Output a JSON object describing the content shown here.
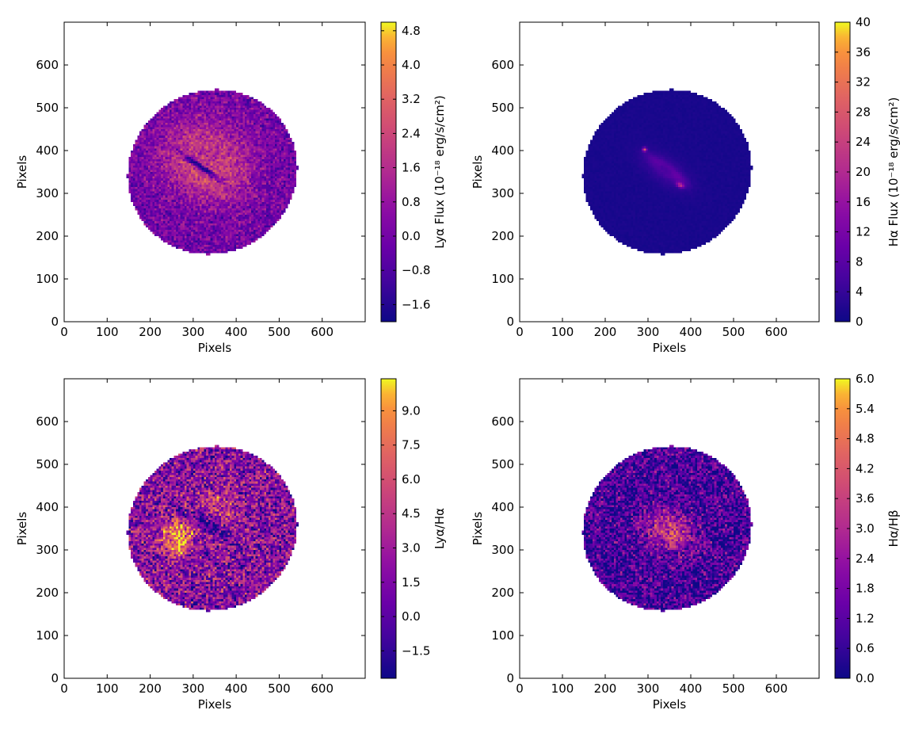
{
  "chart_data": [
    {
      "type": "heatmap",
      "panel": "top-left",
      "xlabel": "Pixels",
      "ylabel": "Pixels",
      "xlim": [
        0,
        700
      ],
      "ylim": [
        0,
        700
      ],
      "xticks": [
        "0",
        "100",
        "200",
        "300",
        "400",
        "500",
        "600"
      ],
      "yticks": [
        "0",
        "100",
        "200",
        "300",
        "400",
        "500",
        "600"
      ],
      "colormap": "plasma",
      "colorbar": {
        "label": "Lyα Flux (10⁻¹⁸ erg/s/cm²)",
        "range": [
          -2.0,
          5.0
        ],
        "ticks": [
          -1.6,
          -0.8,
          0.0,
          0.8,
          1.6,
          2.4,
          3.2,
          4.0,
          4.8
        ],
        "tick_labels": [
          "−1.6",
          "−0.8",
          "0.0",
          "0.8",
          "1.6",
          "2.4",
          "3.2",
          "4.0",
          "4.8"
        ]
      },
      "image": {
        "ellipse": {
          "cx": 345,
          "cy": 350,
          "rx": 200,
          "ry": 190,
          "angle": 30
        },
        "background_level": 0.28,
        "features": [
          {
            "kind": "glow",
            "x": 335,
            "y": 360,
            "rx": 90,
            "ry": 70,
            "angle": -30,
            "level": 0.97
          },
          {
            "kind": "glow",
            "x": 330,
            "y": 390,
            "rx": 135,
            "ry": 115,
            "angle": -20,
            "level": 0.55
          },
          {
            "kind": "hole",
            "x": 320,
            "y": 360,
            "rx": 80,
            "ry": 9,
            "angle": -35,
            "level": 0.05
          }
        ],
        "noise": 0.3
      }
    },
    {
      "type": "heatmap",
      "panel": "top-right",
      "xlabel": "Pixels",
      "ylabel": "Pixels",
      "xlim": [
        0,
        700
      ],
      "ylim": [
        0,
        700
      ],
      "xticks": [
        "0",
        "100",
        "200",
        "300",
        "400",
        "500",
        "600"
      ],
      "yticks": [
        "0",
        "100",
        "200",
        "300",
        "400",
        "500",
        "600"
      ],
      "colormap": "plasma",
      "colorbar": {
        "label": "Hα Flux (10⁻¹⁸ erg/s/cm²)",
        "range": [
          0,
          40
        ],
        "ticks": [
          0,
          4,
          8,
          12,
          16,
          20,
          24,
          28,
          32,
          36,
          40
        ],
        "tick_labels": [
          "0",
          "4",
          "8",
          "12",
          "16",
          "20",
          "24",
          "28",
          "32",
          "36",
          "40"
        ]
      },
      "image": {
        "ellipse": {
          "cx": 345,
          "cy": 350,
          "rx": 200,
          "ry": 190,
          "angle": 30
        },
        "background_level": 0.03,
        "features": [
          {
            "kind": "glow",
            "x": 345,
            "y": 355,
            "rx": 48,
            "ry": 12,
            "angle": -35,
            "level": 0.85
          },
          {
            "kind": "glow",
            "x": 375,
            "y": 320,
            "rx": 12,
            "ry": 7,
            "angle": -30,
            "level": 0.95
          },
          {
            "kind": "glow",
            "x": 292,
            "y": 402,
            "rx": 6,
            "ry": 6,
            "angle": 0,
            "level": 0.9
          },
          {
            "kind": "glow",
            "x": 340,
            "y": 355,
            "rx": 80,
            "ry": 35,
            "angle": -35,
            "level": 0.15
          }
        ],
        "noise": 0.02
      }
    },
    {
      "type": "heatmap",
      "panel": "bottom-left",
      "xlabel": "Pixels",
      "ylabel": "Pixels",
      "xlim": [
        0,
        700
      ],
      "ylim": [
        0,
        700
      ],
      "xticks": [
        "0",
        "100",
        "200",
        "300",
        "400",
        "500",
        "600"
      ],
      "yticks": [
        "0",
        "100",
        "200",
        "300",
        "400",
        "500",
        "600"
      ],
      "colormap": "plasma",
      "colorbar": {
        "label": "Lyα/Hα",
        "range": [
          -2.7,
          10.4
        ],
        "ticks": [
          -1.5,
          0.0,
          1.5,
          3.0,
          4.5,
          6.0,
          7.5,
          9.0
        ],
        "tick_labels": [
          "−1.5",
          "0.0",
          "1.5",
          "3.0",
          "4.5",
          "6.0",
          "7.5",
          "9.0"
        ]
      },
      "image": {
        "ellipse": {
          "cx": 345,
          "cy": 350,
          "rx": 200,
          "ry": 190,
          "angle": 30
        },
        "background_level": 0.35,
        "features": [
          {
            "kind": "glow",
            "x": 265,
            "y": 330,
            "rx": 45,
            "ry": 50,
            "angle": 0,
            "level": 0.95
          },
          {
            "kind": "glow",
            "x": 360,
            "y": 400,
            "rx": 60,
            "ry": 70,
            "angle": 0,
            "level": 0.6
          },
          {
            "kind": "hole",
            "x": 335,
            "y": 360,
            "rx": 70,
            "ry": 25,
            "angle": -30,
            "level": 0.12
          }
        ],
        "noise": 0.6
      }
    },
    {
      "type": "heatmap",
      "panel": "bottom-right",
      "xlabel": "Pixels",
      "ylabel": "Pixels",
      "xlim": [
        0,
        700
      ],
      "ylim": [
        0,
        700
      ],
      "xticks": [
        "0",
        "100",
        "200",
        "300",
        "400",
        "500",
        "600"
      ],
      "yticks": [
        "0",
        "100",
        "200",
        "300",
        "400",
        "500",
        "600"
      ],
      "colormap": "plasma",
      "colorbar": {
        "label": "Hα/Hβ",
        "range": [
          0,
          6
        ],
        "ticks": [
          0.0,
          0.6,
          1.2,
          1.8,
          2.4,
          3.0,
          3.6,
          4.2,
          4.8,
          5.4,
          6.0
        ],
        "tick_labels": [
          "0.0",
          "0.6",
          "1.2",
          "1.8",
          "2.4",
          "3.0",
          "3.6",
          "4.2",
          "4.8",
          "5.4",
          "6.0"
        ]
      },
      "image": {
        "ellipse": {
          "cx": 345,
          "cy": 350,
          "rx": 200,
          "ry": 190,
          "angle": 30
        },
        "background_level": 0.15,
        "features": [
          {
            "kind": "glow",
            "x": 350,
            "y": 345,
            "rx": 70,
            "ry": 55,
            "angle": -25,
            "level": 0.62
          }
        ],
        "noise": 0.5
      }
    }
  ]
}
